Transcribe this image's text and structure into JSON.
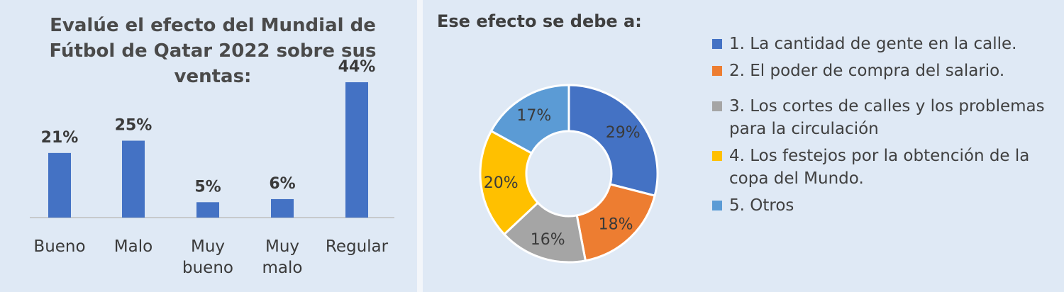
{
  "chart_data": [
    {
      "type": "bar",
      "title_lines": [
        "Evalúe el efecto del Mundial de",
        "Fútbol de Qatar 2022 sobre sus",
        "ventas:"
      ],
      "categories": [
        [
          "Bueno"
        ],
        [
          "Malo"
        ],
        [
          "Muy",
          "bueno"
        ],
        [
          "Muy",
          "malo"
        ],
        [
          "Regular"
        ]
      ],
      "values": [
        21,
        25,
        5,
        6,
        44
      ],
      "data_labels": [
        "21%",
        "25%",
        "5%",
        "6%",
        "44%"
      ],
      "unit": "%",
      "ylim": [
        0,
        50
      ],
      "colors": {
        "bar": "#4472c4",
        "axis": "#bfbfbf"
      },
      "grid": false
    },
    {
      "type": "pie",
      "variant": "donut",
      "title": "Ese efecto se debe a:",
      "labels": [
        "1. La cantidad de gente en la calle.",
        "2. El poder de compra del salario.",
        "3. Los cortes de calles y los problemas para la circulación",
        "4. Los festejos por la obtención de la copa del Mundo.",
        "5. Otros"
      ],
      "values": [
        29,
        18,
        16,
        20,
        17
      ],
      "data_labels": [
        "29%",
        "18%",
        "16%",
        "20%",
        "17%"
      ],
      "unit": "%",
      "colors": [
        "#4472c4",
        "#ed7d31",
        "#a5a5a5",
        "#ffc000",
        "#5b9bd5"
      ],
      "legend_position": "right"
    }
  ]
}
